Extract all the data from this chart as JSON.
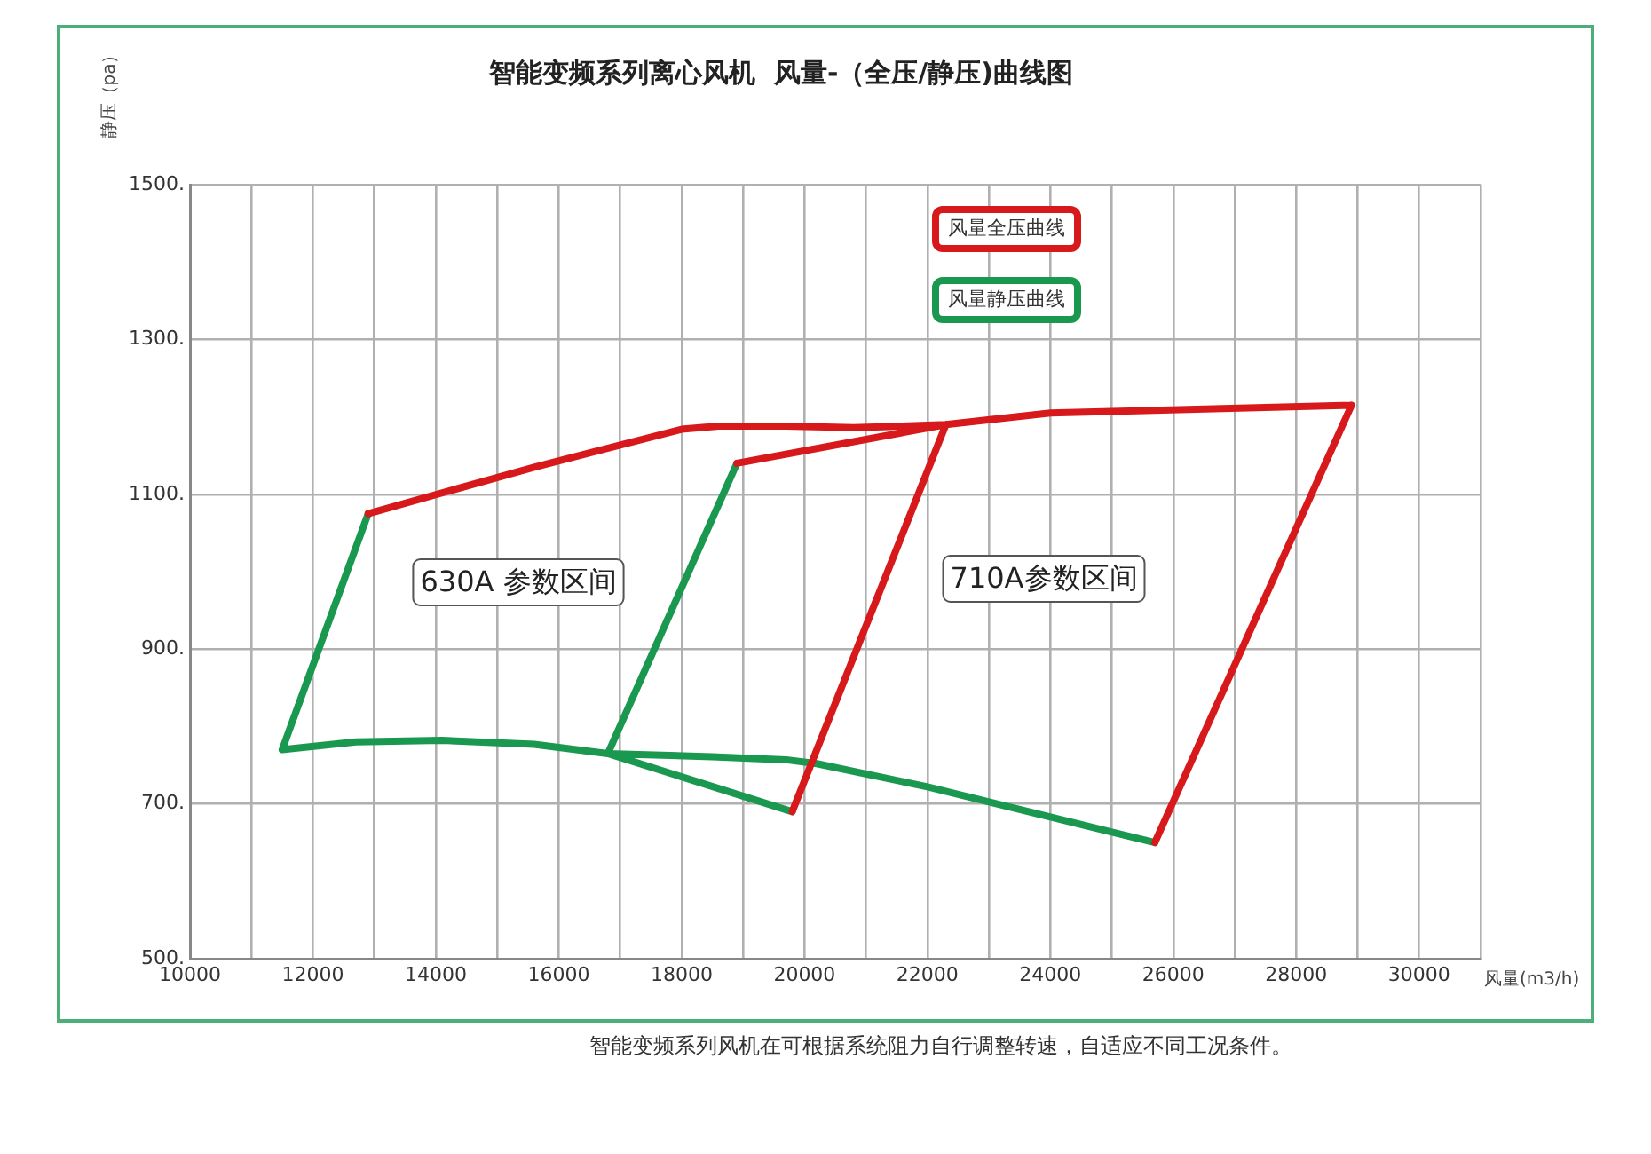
{
  "chart_data": {
    "type": "line",
    "title": "智能变频系列离心风机  风量-（全压/静压)曲线图",
    "xlabel": "风量(m3/h)",
    "ylabel": "静压（pa）",
    "xlim": [
      10000,
      31000
    ],
    "xticks": [
      10000,
      {
        "value": 11000,
        "label": null
      },
      12000,
      {
        "value": 13000,
        "label": null
      },
      14000,
      {
        "value": 15000,
        "label": null
      },
      16000,
      {
        "value": 17000,
        "label": null
      },
      18000,
      {
        "value": 19000,
        "label": null
      },
      20000,
      {
        "value": 21000,
        "label": null
      },
      22000,
      {
        "value": 23000,
        "label": null
      },
      24000,
      {
        "value": 25000,
        "label": null
      },
      26000,
      {
        "value": 27000,
        "label": null
      },
      28000,
      {
        "value": 29000,
        "label": null
      },
      30000,
      {
        "value": 31000,
        "label": null
      }
    ],
    "ylim": [
      500,
      1500
    ],
    "yticks": [
      {
        "value": 500,
        "label": "500."
      },
      {
        "value": 700,
        "label": "700."
      },
      {
        "value": 900,
        "label": "900."
      },
      {
        "value": 1100,
        "label": "1100."
      },
      {
        "value": 1300,
        "label": "1300."
      },
      {
        "value": 1500,
        "label": "1500."
      }
    ],
    "grid": true,
    "legend": "top right",
    "marker": "none",
    "line_style": "solid",
    "series": [
      {
        "name": "风量全压曲线",
        "color": "#d7191c",
        "x": [
          12900,
          15600,
          18000,
          18600,
          19700,
          20800,
          22300,
          null,
          18900,
          22300,
          24000,
          28900,
          null,
          22300,
          19800,
          null,
          28900,
          25700
        ],
        "values": [
          1075,
          1135,
          1184,
          1188,
          1188,
          1186,
          1190,
          null,
          1140,
          1190,
          1205,
          1215,
          null,
          1190,
          690,
          null,
          1215,
          650
        ]
      },
      {
        "name": "风量静压曲线",
        "color": "#1a9850",
        "x": [
          12900,
          11500,
          12700,
          14100,
          15600,
          16800,
          19800,
          null,
          16800,
          18900,
          null,
          16800,
          18500,
          19700,
          20200,
          22000,
          25700
        ],
        "values": [
          1075,
          770,
          780,
          782,
          777,
          765,
          690,
          null,
          765,
          1140,
          null,
          765,
          761,
          757,
          752,
          722,
          650
        ]
      }
    ],
    "annotations": [
      "630A 参数区间",
      "710A参数区间",
      "智能变频系列风机在可根据系统阻力自行调整转速，自适应不同工况条件。"
    ]
  }
}
